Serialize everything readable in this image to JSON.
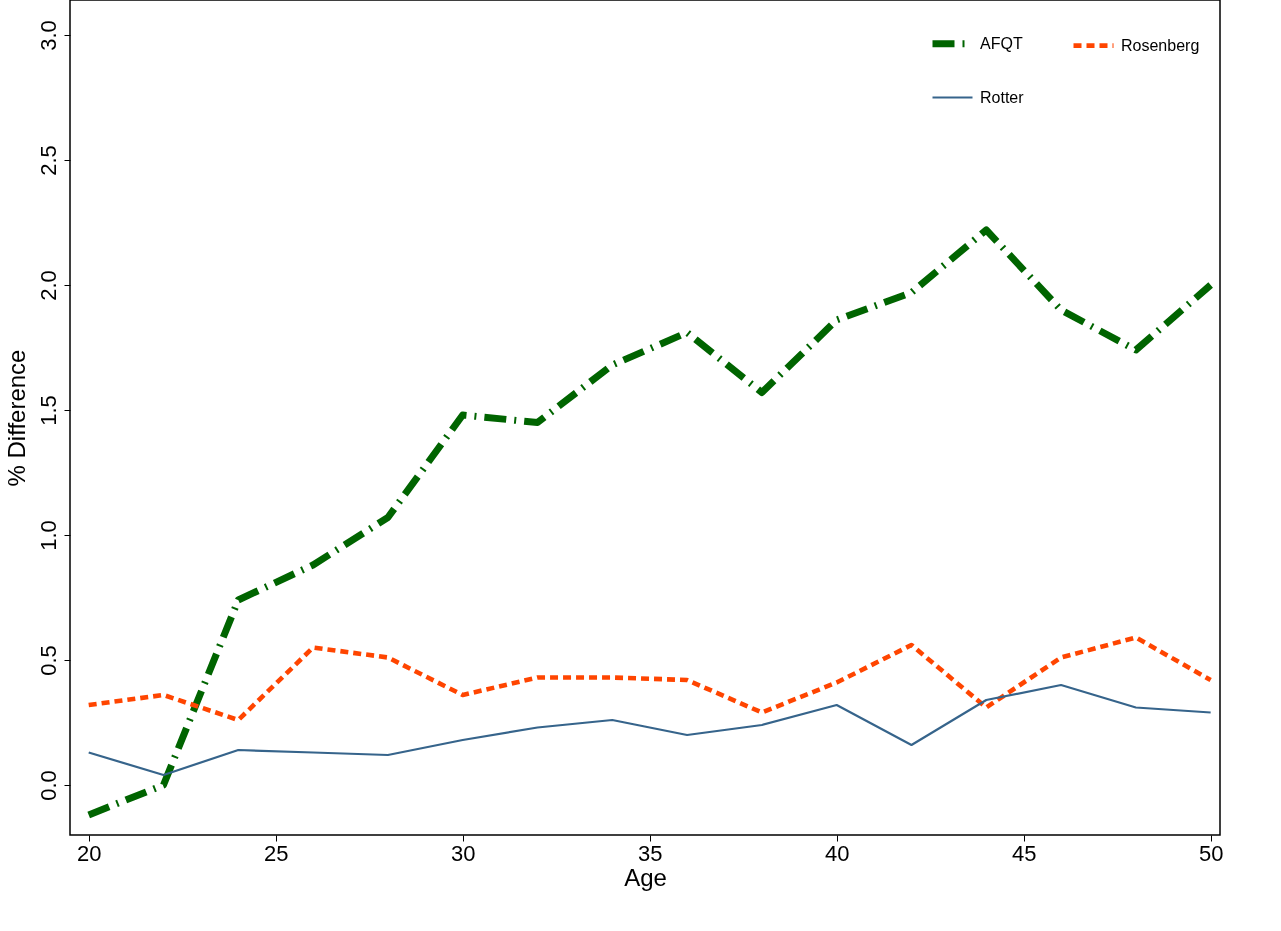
{
  "chart_data": {
    "type": "line",
    "xlabel": "Age",
    "ylabel": "% Difference",
    "x": [
      20,
      22,
      24,
      26,
      28,
      30,
      32,
      34,
      36,
      38,
      40,
      42,
      44,
      46,
      48,
      50
    ],
    "series": [
      {
        "name": "AFQT",
        "color": "#006400",
        "line_style": "dashed",
        "values": [
          -0.12,
          0.0,
          0.74,
          0.88,
          1.07,
          1.48,
          1.45,
          1.68,
          1.81,
          1.57,
          1.86,
          1.97,
          2.22,
          1.9,
          1.74,
          2.0
        ]
      },
      {
        "name": "Rosenberg",
        "color": "#ff4500",
        "line_style": "dashed",
        "values": [
          0.32,
          0.36,
          0.26,
          0.55,
          0.51,
          0.36,
          0.43,
          0.43,
          0.42,
          0.29,
          0.41,
          0.56,
          0.31,
          0.51,
          0.59,
          0.42
        ]
      },
      {
        "name": "Rotter",
        "color": "#36648b",
        "line_style": "solid",
        "values": [
          0.13,
          0.04,
          0.14,
          0.13,
          0.12,
          0.18,
          0.23,
          0.26,
          0.2,
          0.24,
          0.32,
          0.16,
          0.34,
          0.4,
          0.31,
          0.29
        ]
      }
    ],
    "xlim": [
      19.5,
      50.25
    ],
    "xticks": [
      20,
      25,
      30,
      35,
      40,
      45,
      50
    ],
    "ylim": [
      -0.2,
      3.14
    ],
    "yticks": [
      {
        "value": 0,
        "label": "0.0"
      },
      0.5,
      {
        "value": 1,
        "label": "1.0"
      },
      1.5,
      {
        "value": 2,
        "label": "2.0"
      },
      2.5,
      {
        "value": 3,
        "label": "3.0"
      }
    ],
    "grid": false,
    "legend": "top right",
    "marker": "none"
  }
}
